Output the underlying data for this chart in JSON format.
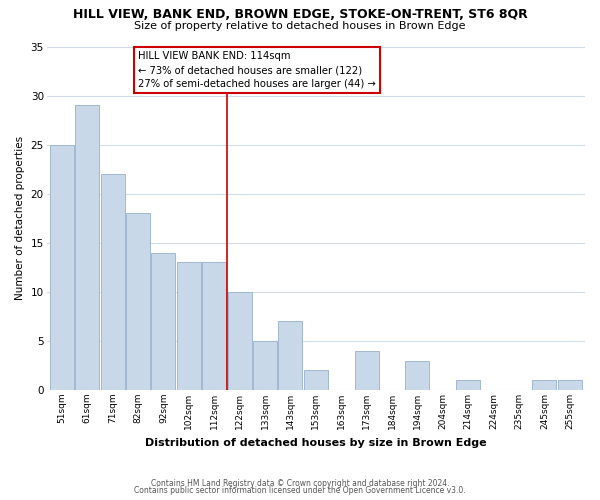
{
  "title": "HILL VIEW, BANK END, BROWN EDGE, STOKE-ON-TRENT, ST6 8QR",
  "subtitle": "Size of property relative to detached houses in Brown Edge",
  "xlabel": "Distribution of detached houses by size in Brown Edge",
  "ylabel": "Number of detached properties",
  "footnote1": "Contains HM Land Registry data © Crown copyright and database right 2024.",
  "footnote2": "Contains public sector information licensed under the Open Government Licence v3.0.",
  "bar_labels": [
    "51sqm",
    "61sqm",
    "71sqm",
    "82sqm",
    "92sqm",
    "102sqm",
    "112sqm",
    "122sqm",
    "133sqm",
    "143sqm",
    "153sqm",
    "163sqm",
    "173sqm",
    "184sqm",
    "194sqm",
    "204sqm",
    "214sqm",
    "224sqm",
    "235sqm",
    "245sqm",
    "255sqm"
  ],
  "bar_values": [
    25,
    29,
    22,
    18,
    14,
    13,
    13,
    10,
    5,
    7,
    2,
    0,
    4,
    0,
    3,
    0,
    1,
    0,
    0,
    1,
    1
  ],
  "bar_color": "#c8d8e8",
  "bar_edge_color": "#a0b8d0",
  "vline_x": 6.5,
  "vline_color": "#cc0000",
  "annotation_title": "HILL VIEW BANK END: 114sqm",
  "annotation_line1": "← 73% of detached houses are smaller (122)",
  "annotation_line2": "27% of semi-detached houses are larger (44) →",
  "annotation_box_color": "#ffffff",
  "annotation_box_edge": "#cc0000",
  "ylim": [
    0,
    35
  ],
  "yticks": [
    0,
    5,
    10,
    15,
    20,
    25,
    30,
    35
  ],
  "background_color": "#ffffff",
  "grid_color": "#d0dce8"
}
